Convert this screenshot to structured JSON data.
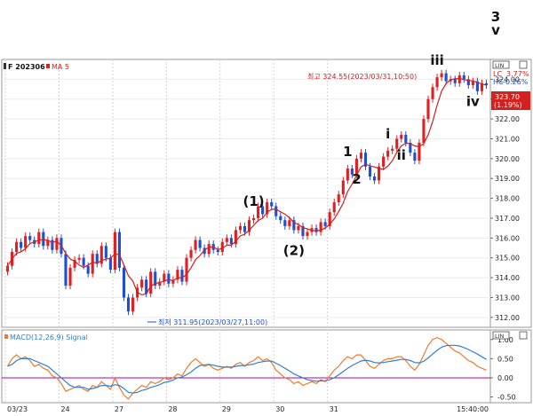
{
  "corner_label": {
    "top": "3",
    "bottom": "v"
  },
  "header": {
    "symbol": "F 202306",
    "ma_label": "MA 5",
    "indicator_label": "MACD(12,26,9) Signal"
  },
  "side_panel": {
    "price_tag": "LIN",
    "lc_label": "LC",
    "lc_value": "3.77%",
    "hc_label": "HC",
    "hc_value": "-0.26%",
    "current_price": "323.70",
    "current_change": "(1.19%)",
    "macd_tag": "LIN"
  },
  "annotations": {
    "high": "최고 324.55(2023/03/31,10:50)",
    "low": "최저 311.95(2023/03/27,11:00)"
  },
  "colors": {
    "up": "#e02020",
    "down": "#1f4fd0",
    "ma": "#d02020",
    "macd": "#f07a2a",
    "signal": "#2f7fd4",
    "zero": "#b000b0"
  },
  "chart_data": {
    "type": "candlestick",
    "x_tick_labels": [
      "03/23",
      "24",
      "27",
      "28",
      "29",
      "30",
      "31",
      "15:40:00"
    ],
    "y_tick_labels": [
      "312.00",
      "313.00",
      "314.00",
      "315.00",
      "316.00",
      "317.00",
      "318.00",
      "319.00",
      "320.00",
      "321.00",
      "322.00",
      "323.00",
      "324.00"
    ],
    "ylim": [
      311.5,
      325.0
    ],
    "close": [
      314.6,
      315.3,
      315.8,
      315.5,
      316.1,
      315.9,
      315.7,
      316.3,
      315.6,
      315.9,
      315.4,
      316.0,
      315.2,
      313.6,
      314.5,
      314.9,
      315.0,
      314.6,
      314.2,
      315.2,
      314.7,
      315.6,
      315.0,
      314.4,
      316.3,
      314.5,
      313.0,
      312.3,
      313.0,
      313.5,
      313.9,
      313.2,
      314.3,
      313.6,
      313.8,
      314.2,
      313.7,
      313.9,
      314.4,
      313.8,
      315.0,
      315.4,
      315.9,
      315.5,
      315.2,
      315.7,
      315.4,
      315.3,
      315.8,
      316.0,
      315.7,
      316.4,
      316.6,
      316.3,
      316.9,
      317.0,
      317.6,
      317.2,
      317.8,
      317.6,
      317.1,
      316.9,
      316.6,
      316.9,
      316.4,
      316.6,
      316.1,
      316.3,
      316.5,
      316.3,
      316.8,
      316.6,
      317.3,
      317.8,
      318.2,
      318.9,
      319.5,
      319.2,
      320.0,
      320.3,
      319.6,
      319.1,
      318.9,
      319.6,
      320.1,
      320.4,
      320.5,
      321.0,
      321.2,
      320.8,
      320.3,
      319.9,
      320.8,
      322.0,
      323.0,
      323.6,
      324.1,
      324.3,
      323.9,
      324.0,
      323.8,
      324.2,
      324.0,
      323.7,
      323.9,
      323.4,
      323.8,
      323.7
    ],
    "macd": [
      0.3,
      0.5,
      0.6,
      0.5,
      0.55,
      0.45,
      0.3,
      0.35,
      0.25,
      0.2,
      0.05,
      0.0,
      -0.15,
      -0.35,
      -0.3,
      -0.25,
      -0.2,
      -0.3,
      -0.35,
      -0.2,
      -0.25,
      -0.1,
      -0.2,
      -0.3,
      0.0,
      -0.25,
      -0.45,
      -0.55,
      -0.4,
      -0.3,
      -0.2,
      -0.25,
      -0.1,
      -0.15,
      -0.1,
      0.0,
      -0.05,
      0.0,
      0.1,
      0.05,
      0.25,
      0.4,
      0.5,
      0.4,
      0.3,
      0.35,
      0.25,
      0.2,
      0.25,
      0.3,
      0.25,
      0.35,
      0.4,
      0.3,
      0.4,
      0.45,
      0.55,
      0.45,
      0.5,
      0.4,
      0.2,
      0.1,
      0.0,
      -0.05,
      -0.15,
      -0.1,
      -0.2,
      -0.15,
      -0.1,
      -0.15,
      -0.05,
      -0.1,
      0.05,
      0.2,
      0.3,
      0.45,
      0.55,
      0.5,
      0.6,
      0.6,
      0.45,
      0.3,
      0.25,
      0.35,
      0.45,
      0.5,
      0.5,
      0.55,
      0.55,
      0.45,
      0.3,
      0.2,
      0.35,
      0.6,
      0.85,
      1.0,
      1.05,
      1.0,
      0.9,
      0.8,
      0.7,
      0.65,
      0.55,
      0.45,
      0.4,
      0.3,
      0.25,
      0.2
    ],
    "signal": [
      0.3,
      0.35,
      0.45,
      0.5,
      0.5,
      0.5,
      0.45,
      0.4,
      0.35,
      0.3,
      0.2,
      0.1,
      0.0,
      -0.1,
      -0.2,
      -0.25,
      -0.25,
      -0.25,
      -0.3,
      -0.28,
      -0.25,
      -0.2,
      -0.2,
      -0.22,
      -0.18,
      -0.2,
      -0.28,
      -0.38,
      -0.4,
      -0.38,
      -0.33,
      -0.3,
      -0.25,
      -0.22,
      -0.18,
      -0.12,
      -0.1,
      -0.06,
      0.0,
      0.02,
      0.08,
      0.15,
      0.25,
      0.32,
      0.34,
      0.35,
      0.33,
      0.3,
      0.28,
      0.28,
      0.28,
      0.3,
      0.32,
      0.32,
      0.34,
      0.36,
      0.4,
      0.42,
      0.44,
      0.44,
      0.38,
      0.32,
      0.25,
      0.18,
      0.1,
      0.05,
      0.0,
      -0.05,
      -0.07,
      -0.09,
      -0.08,
      -0.08,
      -0.05,
      0.0,
      0.08,
      0.16,
      0.25,
      0.32,
      0.38,
      0.44,
      0.46,
      0.44,
      0.4,
      0.39,
      0.4,
      0.42,
      0.44,
      0.46,
      0.48,
      0.48,
      0.45,
      0.4,
      0.39,
      0.43,
      0.52,
      0.62,
      0.72,
      0.8,
      0.84,
      0.85,
      0.85,
      0.83,
      0.79,
      0.74,
      0.68,
      0.62,
      0.55,
      0.48
    ],
    "macd_ylim": [
      -0.65,
      1.25
    ],
    "macd_tick_labels": [
      "1.00",
      "0.50",
      "0.00",
      "-0.50"
    ],
    "wave_labels": [
      {
        "text": "(1)",
        "x_index": 55
      },
      {
        "text": "(2)",
        "x_index": 64
      },
      {
        "text": "1",
        "x_index": 76
      },
      {
        "text": "2",
        "x_index": 78
      },
      {
        "text": "i",
        "x_index": 85
      },
      {
        "text": "ii",
        "x_index": 88
      },
      {
        "text": "iii",
        "x_index": 96
      },
      {
        "text": "iv",
        "x_index": 104
      }
    ]
  }
}
